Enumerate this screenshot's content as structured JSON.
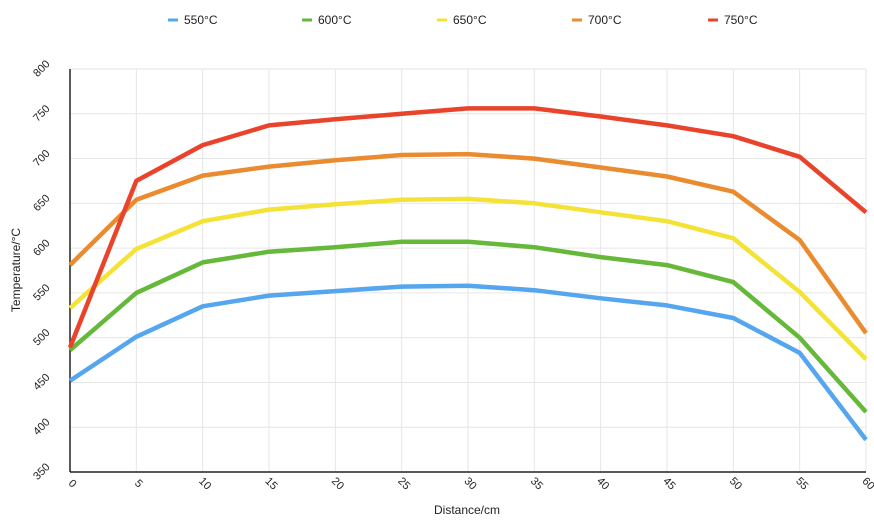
{
  "chart_data": {
    "type": "line",
    "title": "",
    "xlabel": "Distance/cm",
    "ylabel": "Temperature/°C",
    "x": [
      0,
      5,
      10,
      15,
      20,
      25,
      30,
      35,
      40,
      45,
      50,
      55,
      60
    ],
    "xlim": [
      0,
      60
    ],
    "ylim": [
      350,
      800
    ],
    "xticks": [
      "0",
      "5",
      "10",
      "15",
      "20",
      "25",
      "30",
      "35",
      "40",
      "45",
      "50",
      "55",
      "60"
    ],
    "yticks": [
      "350",
      "400",
      "450",
      "500",
      "550",
      "600",
      "650",
      "700",
      "750",
      "800"
    ],
    "grid": true,
    "legend_position": "top",
    "series": [
      {
        "name": "550°C",
        "color": "#55a6ee",
        "values": [
          452,
          501,
          535,
          547,
          552,
          557,
          558,
          553,
          544,
          536,
          522,
          483,
          386
        ]
      },
      {
        "name": "600°C",
        "color": "#66b83a",
        "values": [
          486,
          550,
          584,
          596,
          601,
          607,
          607,
          601,
          590,
          581,
          562,
          500,
          417
        ]
      },
      {
        "name": "650°C",
        "color": "#f5e236",
        "values": [
          533,
          599,
          630,
          643,
          649,
          654,
          655,
          650,
          640,
          630,
          611,
          551,
          476
        ]
      },
      {
        "name": "700°C",
        "color": "#e98b2e",
        "values": [
          581,
          654,
          681,
          691,
          698,
          704,
          705,
          700,
          690,
          680,
          663,
          609,
          505
        ]
      },
      {
        "name": "750°C",
        "color": "#e9442b",
        "values": [
          489,
          675,
          715,
          737,
          744,
          750,
          756,
          756,
          747,
          737,
          725,
          702,
          640
        ]
      }
    ]
  }
}
